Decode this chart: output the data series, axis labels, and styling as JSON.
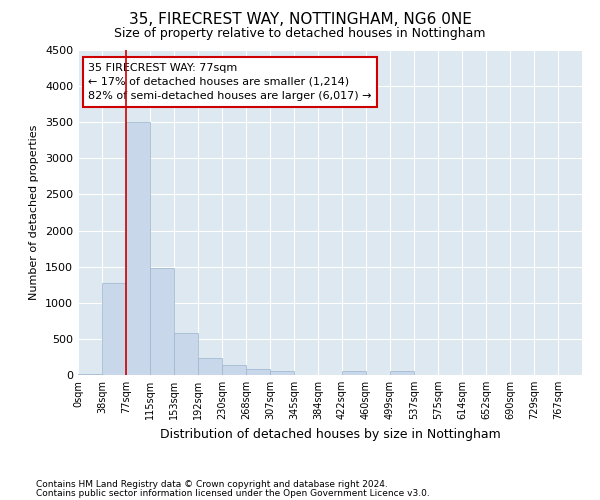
{
  "title1": "35, FIRECREST WAY, NOTTINGHAM, NG6 0NE",
  "title2": "Size of property relative to detached houses in Nottingham",
  "xlabel": "Distribution of detached houses by size in Nottingham",
  "ylabel": "Number of detached properties",
  "bin_labels": [
    "0sqm",
    "38sqm",
    "77sqm",
    "115sqm",
    "153sqm",
    "192sqm",
    "230sqm",
    "268sqm",
    "307sqm",
    "345sqm",
    "384sqm",
    "422sqm",
    "460sqm",
    "499sqm",
    "537sqm",
    "575sqm",
    "614sqm",
    "652sqm",
    "690sqm",
    "729sqm",
    "767sqm"
  ],
  "bar_heights": [
    10,
    1270,
    3500,
    1480,
    580,
    240,
    135,
    80,
    55,
    0,
    0,
    50,
    0,
    50,
    0,
    0,
    0,
    0,
    0,
    0,
    0
  ],
  "bar_color": "#c8d8ea",
  "bar_edge_color": "#9ab4cc",
  "vline_x": 2,
  "vline_color": "#cc0000",
  "ylim": [
    0,
    4500
  ],
  "yticks": [
    0,
    500,
    1000,
    1500,
    2000,
    2500,
    3000,
    3500,
    4000,
    4500
  ],
  "annotation_line1": "35 FIRECREST WAY: 77sqm",
  "annotation_line2": "← 17% of detached houses are smaller (1,214)",
  "annotation_line3": "82% of semi-detached houses are larger (6,017) →",
  "annotation_box_color": "#ffffff",
  "annotation_box_edge": "#cc0000",
  "footer1": "Contains HM Land Registry data © Crown copyright and database right 2024.",
  "footer2": "Contains public sector information licensed under the Open Government Licence v3.0.",
  "background_color": "#dde8f0",
  "fig_background": "#ffffff",
  "grid_color": "#ffffff",
  "title1_fontsize": 11,
  "title2_fontsize": 9,
  "ylabel_fontsize": 8,
  "xlabel_fontsize": 9
}
